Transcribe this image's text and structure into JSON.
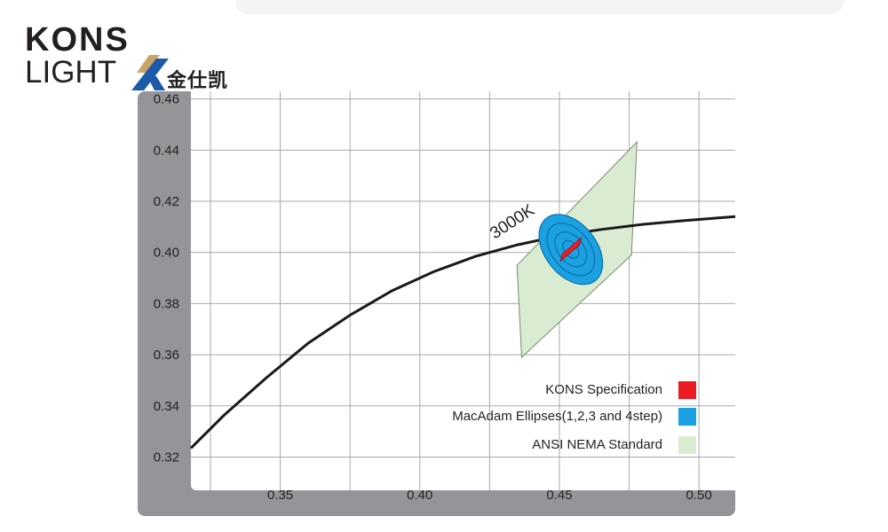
{
  "logo": {
    "line1": "KONS",
    "line2": "LIGHT",
    "chinese": "金仕凯",
    "mark_colors": [
      "#1d5aa8",
      "#c9a467"
    ]
  },
  "chart_data": {
    "type": "line",
    "xlim": [
      0.318,
      0.513
    ],
    "ylim": [
      0.307,
      0.463
    ],
    "x_ticks": [
      0.35,
      0.4,
      0.45,
      0.5
    ],
    "x_tick_labels": [
      "0.35",
      "0.40",
      "0.45",
      "0.50"
    ],
    "y_ticks": [
      0.32,
      0.34,
      0.36,
      0.38,
      0.4,
      0.42,
      0.44,
      0.46
    ],
    "y_tick_labels": [
      "0.32",
      "0.34",
      "0.36",
      "0.38",
      "0.40",
      "0.42",
      "0.44",
      "0.46"
    ],
    "grid": true,
    "annotation": "3000K",
    "series": [
      {
        "kind": "curve",
        "color": "#1a1a1a",
        "x": [
          0.318,
          0.33,
          0.345,
          0.36,
          0.375,
          0.39,
          0.405,
          0.42,
          0.435,
          0.45,
          0.465,
          0.48,
          0.495,
          0.513
        ],
        "y": [
          0.3235,
          0.3365,
          0.351,
          0.3645,
          0.3755,
          0.385,
          0.3925,
          0.3985,
          0.403,
          0.4065,
          0.409,
          0.411,
          0.4125,
          0.414
        ]
      },
      {
        "name": "ANSI NEMA Standard",
        "kind": "polygon",
        "color": "#d9ecd1",
        "x": [
          0.4348,
          0.4778,
          0.4758,
          0.4365
        ],
        "y": [
          0.395,
          0.4432,
          0.399,
          0.359
        ]
      },
      {
        "name": "MacAdam Ellipses(1,2,3 and 4step)",
        "kind": "ellipse-set",
        "color": "#1ba1e2",
        "center": [
          0.4541,
          0.4012
        ],
        "radii": [
          [
            0.0092,
            0.0155
          ],
          [
            0.0069,
            0.0116
          ],
          [
            0.0046,
            0.0077
          ],
          [
            0.0023,
            0.0039
          ]
        ]
      },
      {
        "name": "KONS Specification",
        "kind": "polygon",
        "color": "#ed1c24",
        "x": [
          0.451,
          0.4578,
          0.4572,
          0.4504
        ],
        "y": [
          0.3994,
          0.4058,
          0.403,
          0.3966
        ]
      }
    ]
  },
  "legend": [
    {
      "label": "KONS Specification",
      "color": "#ed1c24"
    },
    {
      "label": "MacAdam Ellipses(1,2,3 and 4step)",
      "color": "#1ba1e2"
    },
    {
      "label": "ANSI NEMA Standard",
      "color": "#d9ecd1"
    }
  ]
}
